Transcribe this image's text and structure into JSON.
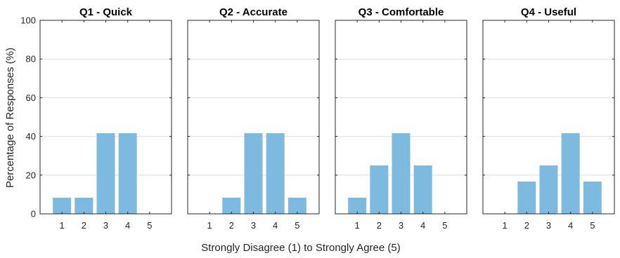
{
  "chart_data": {
    "type": "bar",
    "ylabel": "Percentage of Responses (%)",
    "xlabel": "Strongly Disagree (1) to Strongly Agree (5)",
    "ylim": [
      0,
      100
    ],
    "yticks": [
      0,
      20,
      40,
      60,
      80,
      100
    ],
    "categories": [
      "1",
      "2",
      "3",
      "4",
      "5"
    ],
    "bar_color": "#7eb9e0",
    "grid": true,
    "panels": [
      {
        "title": "Q1 - Quick",
        "values": [
          8.33,
          8.33,
          41.67,
          41.67,
          0
        ]
      },
      {
        "title": "Q2 - Accurate",
        "values": [
          0,
          8.33,
          41.67,
          41.67,
          8.33
        ]
      },
      {
        "title": "Q3 - Comfortable",
        "values": [
          8.33,
          25,
          41.67,
          25,
          0
        ]
      },
      {
        "title": "Q4 - Useful",
        "values": [
          0,
          16.67,
          25,
          41.67,
          16.67
        ]
      }
    ]
  }
}
